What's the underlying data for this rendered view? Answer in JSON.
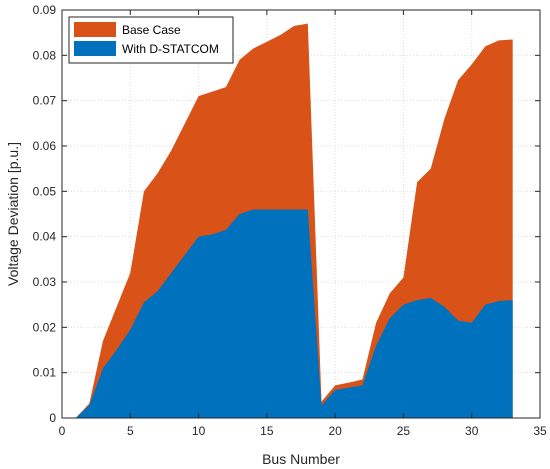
{
  "chart_data": {
    "type": "area",
    "xlabel": "Bus Number",
    "ylabel": "Voltage Deviation [p.u.]",
    "xlim": [
      0,
      35
    ],
    "ylim": [
      0,
      0.09
    ],
    "xticks": [
      0,
      5,
      10,
      15,
      20,
      25,
      30,
      35
    ],
    "yticks": [
      0,
      0.01,
      0.02,
      0.03,
      0.04,
      0.05,
      0.06,
      0.07,
      0.08,
      0.09
    ],
    "xtick_labels": [
      "0",
      "5",
      "10",
      "15",
      "20",
      "25",
      "30",
      "35"
    ],
    "ytick_labels": [
      "0",
      "0.01",
      "0.02",
      "0.03",
      "0.04",
      "0.05",
      "0.06",
      "0.07",
      "0.08",
      "0.09"
    ],
    "grid": true,
    "legend_position": "top-left",
    "x": [
      1,
      2,
      3,
      4,
      5,
      6,
      7,
      8,
      9,
      10,
      11,
      12,
      13,
      14,
      15,
      16,
      17,
      18,
      19,
      20,
      21,
      22,
      23,
      24,
      25,
      26,
      27,
      28,
      29,
      30,
      31,
      32,
      33
    ],
    "series": [
      {
        "name": "Base Case",
        "color": "#d95319",
        "values": [
          0.0,
          0.0032,
          0.017,
          0.0245,
          0.032,
          0.05,
          0.054,
          0.059,
          0.065,
          0.071,
          0.072,
          0.073,
          0.079,
          0.0815,
          0.083,
          0.0845,
          0.0865,
          0.087,
          0.0036,
          0.0072,
          0.0078,
          0.0085,
          0.021,
          0.0275,
          0.031,
          0.052,
          0.055,
          0.066,
          0.0745,
          0.078,
          0.082,
          0.0833,
          0.0835
        ]
      },
      {
        "name": "With D-STATCOM",
        "color": "#0072bd",
        "values": [
          0.0,
          0.0028,
          0.011,
          0.015,
          0.0195,
          0.0255,
          0.028,
          0.032,
          0.036,
          0.04,
          0.0405,
          0.0415,
          0.045,
          0.046,
          0.046,
          0.046,
          0.046,
          0.046,
          0.0028,
          0.0062,
          0.0067,
          0.0072,
          0.016,
          0.022,
          0.025,
          0.026,
          0.0265,
          0.0245,
          0.0215,
          0.021,
          0.025,
          0.0258,
          0.026
        ]
      }
    ]
  }
}
